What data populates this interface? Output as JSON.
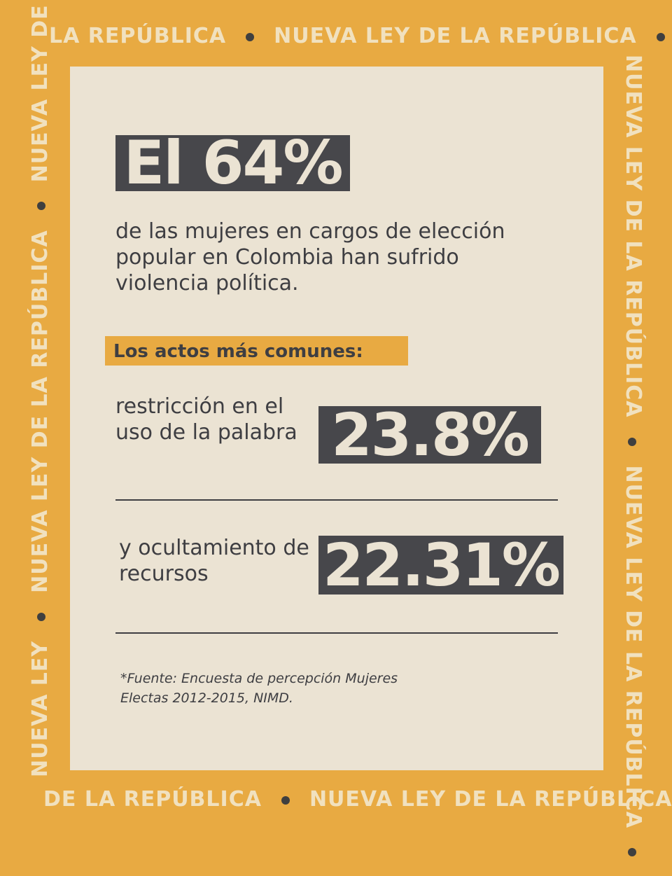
{
  "frame": {
    "top_a": "LA  REPÚBLICA",
    "top_b": "NUEVA LEY DE LA REPÚBLICA",
    "bottom_a": "DE LA REPÚBLICA",
    "bottom_b": "NUEVA LEY DE LA REPÚBLICA",
    "left_a": "NUEVA LEY",
    "left_b": "NUEVA LEY DE LA REPÚBLICA",
    "left_c": "NUEVA LEY DE",
    "right_a": "NUEVA  LEY DE LA REPÚBLICA",
    "right_b": "NUEVA LEY DE LA REPÚBLICA"
  },
  "headline": {
    "stat": "El 64%"
  },
  "intro_text": "de las mujeres en cargos de elección popular en Colombia han sufrido violencia política.",
  "section_label": "Los actos más comunes:",
  "acts": [
    {
      "label": "restricción en el uso de la palabra",
      "value": "23.8%"
    },
    {
      "label": "y ocultamiento de recursos",
      "value": "22.31%"
    }
  ],
  "source": {
    "prefix": "*Fuente",
    "text": ": Encuesta de percepción Mujeres Electas 2012-2015, NIMD."
  },
  "colors": {
    "background": "#e8aa42",
    "paper": "#ebe3d3",
    "dark": "#47474b",
    "frame_text": "#f1e1bf"
  }
}
